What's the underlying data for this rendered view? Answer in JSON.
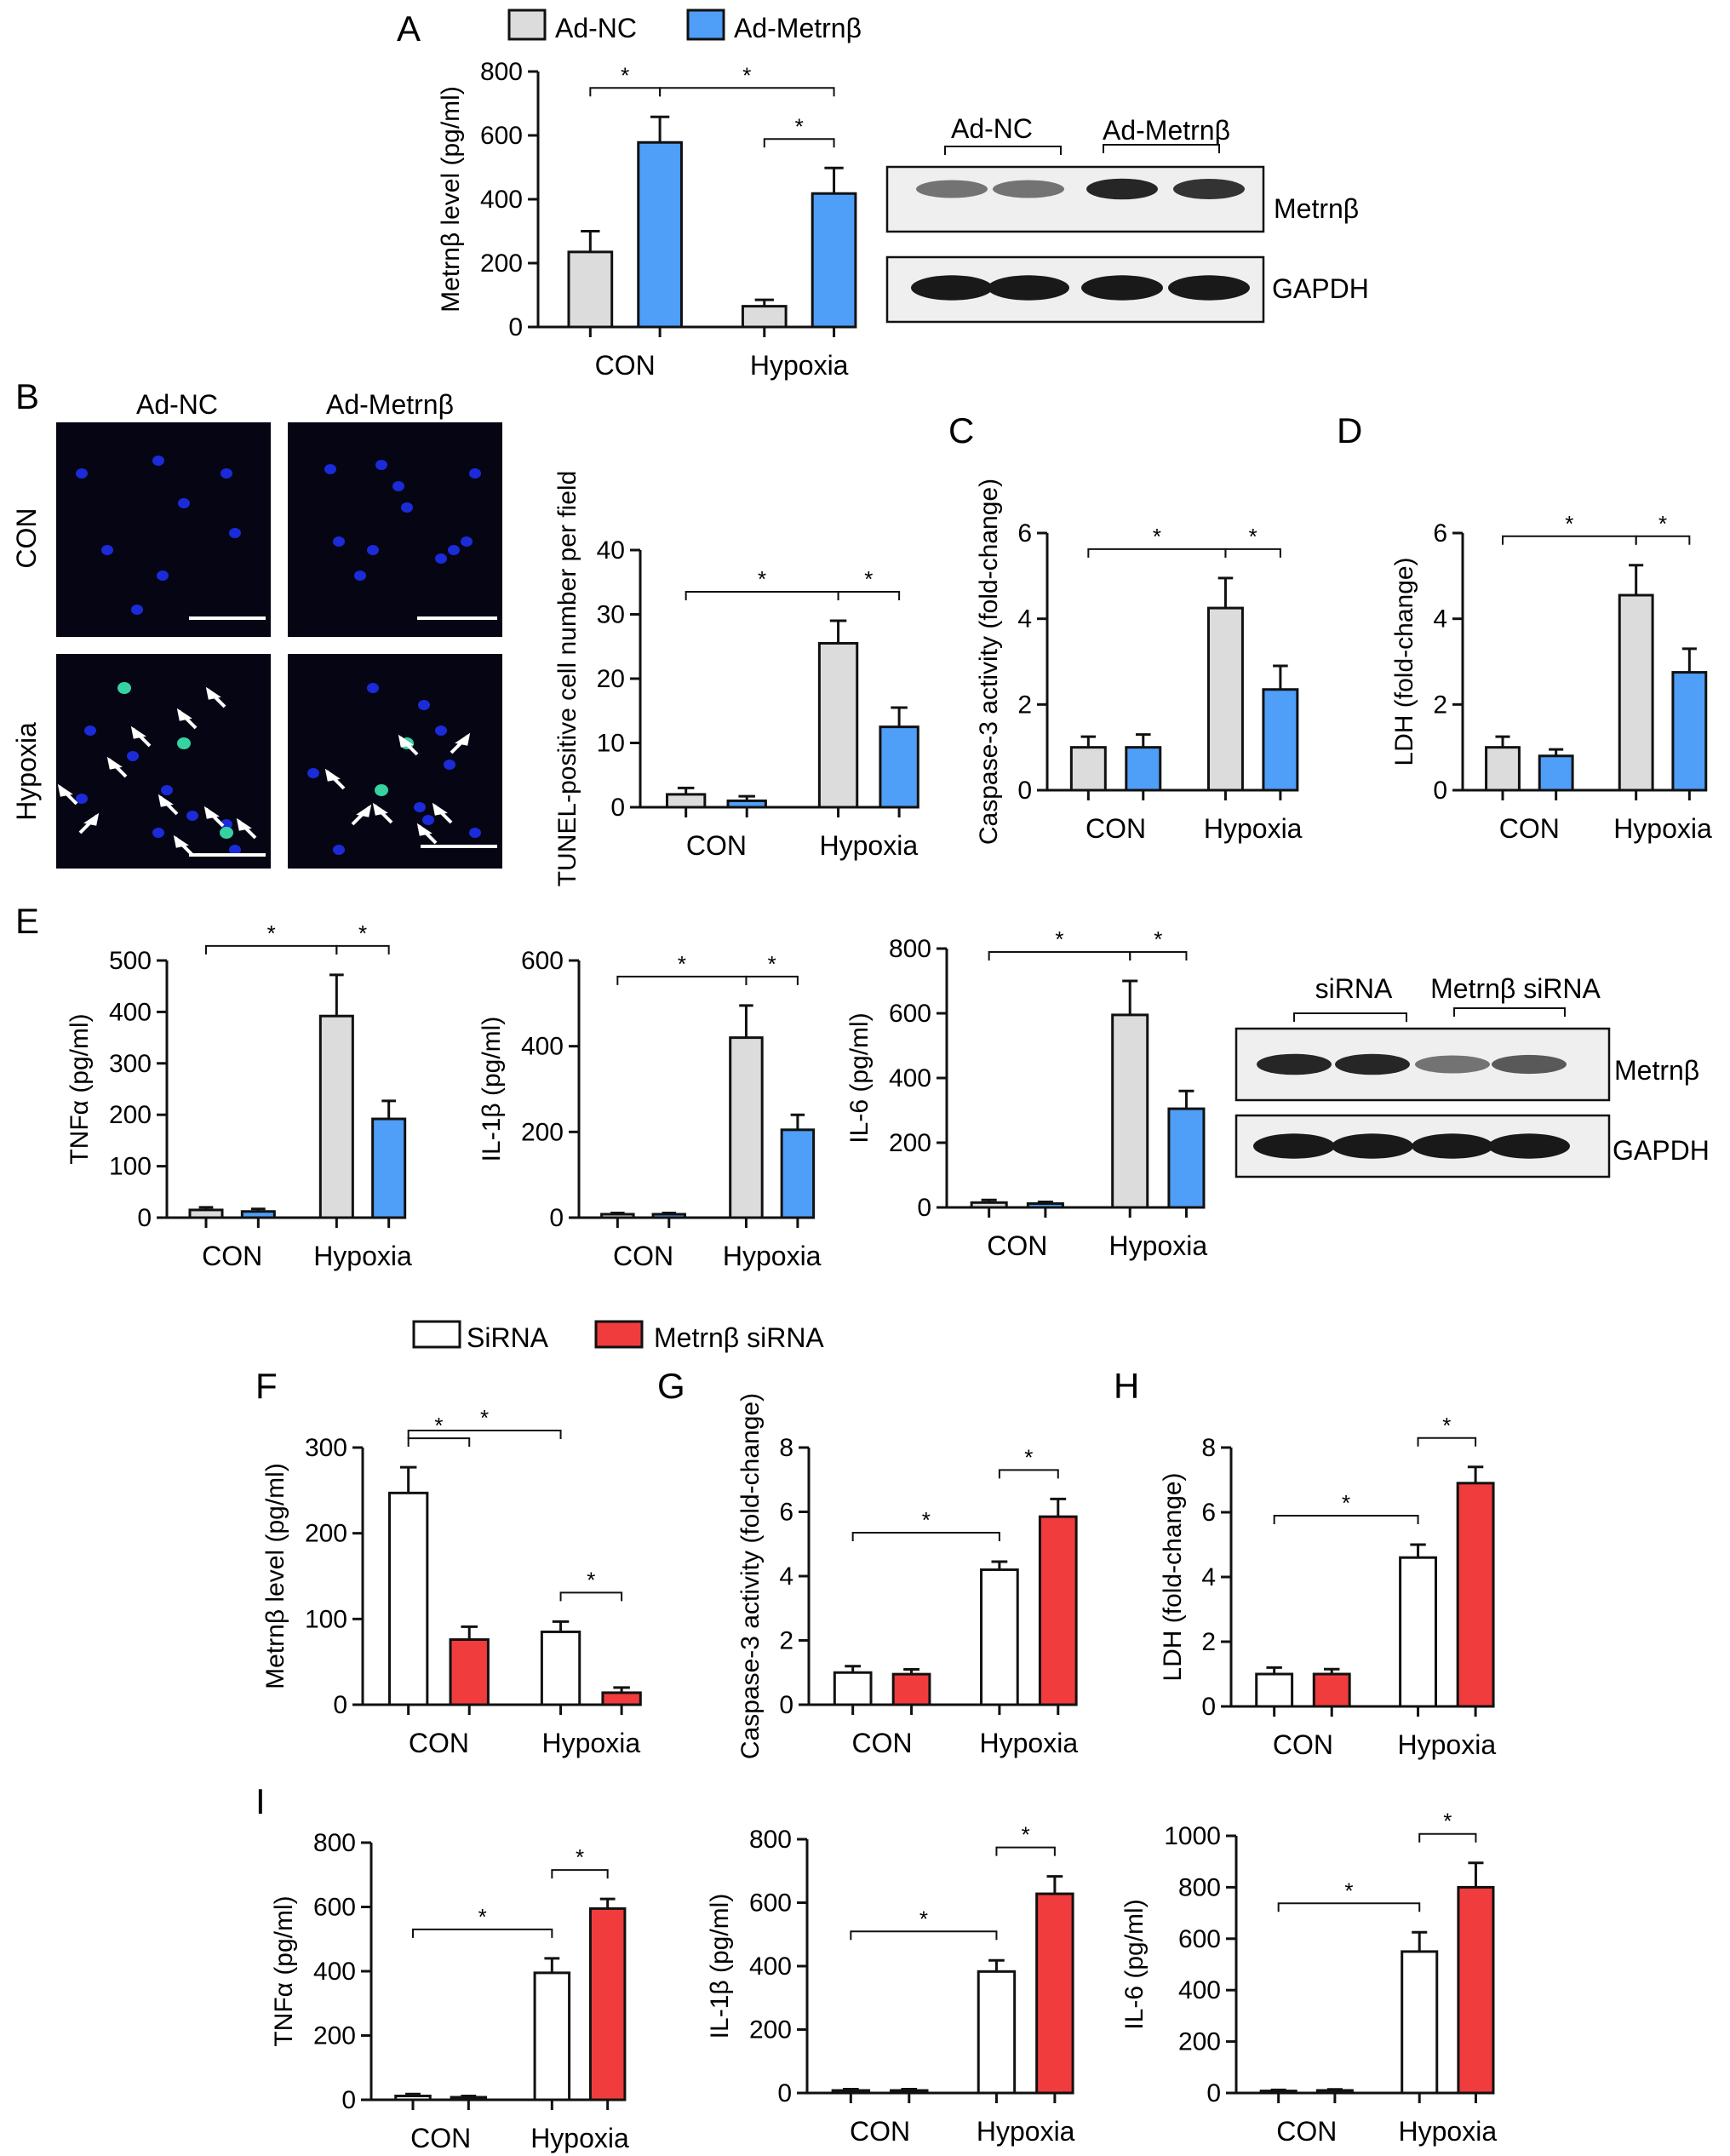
{
  "colors": {
    "ad_nc": "#dcdcdc",
    "ad_metrn": "#4f9ef8",
    "sirna": "#ffffff",
    "metrn_sirna": "#f03c3c",
    "stain_bg": "#050514",
    "nucleus": "#1b2bd8",
    "tunel": "#36d2a0"
  },
  "legends": {
    "top": [
      "Ad-NC",
      "Ad-Metrnβ"
    ],
    "bottom": [
      "SiRNA",
      "Metrnβ siRNA"
    ]
  },
  "chart_data": [
    {
      "id": "A",
      "letter": "A",
      "type": "bar",
      "ylabel": "Metrnβ level (pg/ml)",
      "ylim": [
        0,
        800
      ],
      "ticks": [
        0,
        200,
        400,
        600,
        800
      ],
      "categories": [
        "CON",
        "Hypoxia"
      ],
      "series": [
        {
          "name": "Ad-NC",
          "values": [
            235,
            65
          ],
          "errors": [
            65,
            20
          ]
        },
        {
          "name": "Ad-Metrnβ",
          "values": [
            578,
            418
          ],
          "errors": [
            80,
            80
          ]
        }
      ],
      "significance": [
        [
          0,
          1
        ],
        [
          1,
          3
        ],
        [
          2,
          3
        ]
      ]
    },
    {
      "id": "B",
      "letter": "",
      "type": "bar",
      "ylabel": "TUNEL-positive cell number per field",
      "ylim": [
        0,
        40
      ],
      "ticks": [
        0,
        10,
        20,
        30,
        40
      ],
      "categories": [
        "CON",
        "Hypoxia"
      ],
      "series": [
        {
          "name": "Ad-NC",
          "values": [
            2,
            25.5
          ],
          "errors": [
            1,
            3.5
          ]
        },
        {
          "name": "Ad-Metrnβ",
          "values": [
            1,
            12.5
          ],
          "errors": [
            0.7,
            3
          ]
        }
      ],
      "significance": [
        [
          0,
          2
        ],
        [
          2,
          3
        ]
      ]
    },
    {
      "id": "C",
      "letter": "C",
      "type": "bar",
      "ylabel": "Caspase-3 activity (fold-change)",
      "ylim": [
        0,
        6
      ],
      "ticks": [
        0,
        2,
        4,
        6
      ],
      "categories": [
        "CON",
        "Hypoxia"
      ],
      "series": [
        {
          "name": "Ad-NC",
          "values": [
            1,
            4.25
          ],
          "errors": [
            0.25,
            0.7
          ]
        },
        {
          "name": "Ad-Metrnβ",
          "values": [
            1,
            2.35
          ],
          "errors": [
            0.3,
            0.55
          ]
        }
      ],
      "significance": [
        [
          0,
          2
        ],
        [
          2,
          3
        ]
      ]
    },
    {
      "id": "D",
      "letter": "D",
      "type": "bar",
      "ylabel": "LDH (fold-change)",
      "ylim": [
        0,
        6
      ],
      "ticks": [
        0,
        2,
        4,
        6
      ],
      "categories": [
        "CON",
        "Hypoxia"
      ],
      "series": [
        {
          "name": "Ad-NC",
          "values": [
            1,
            4.55
          ],
          "errors": [
            0.25,
            0.7
          ]
        },
        {
          "name": "Ad-Metrnβ",
          "values": [
            0.8,
            2.75
          ],
          "errors": [
            0.15,
            0.55
          ]
        }
      ],
      "significance": [
        [
          0,
          2
        ],
        [
          2,
          3
        ]
      ]
    },
    {
      "id": "E1",
      "letter": "E",
      "type": "bar",
      "ylabel": "TNFα (pg/ml)",
      "ylim": [
        0,
        500
      ],
      "ticks": [
        0,
        100,
        200,
        300,
        400,
        500
      ],
      "categories": [
        "CON",
        "Hypoxia"
      ],
      "series": [
        {
          "name": "Ad-NC",
          "values": [
            15,
            392
          ],
          "errors": [
            5,
            80
          ]
        },
        {
          "name": "Ad-Metrnβ",
          "values": [
            12,
            192
          ],
          "errors": [
            5,
            35
          ]
        }
      ],
      "significance": [
        [
          0,
          2
        ],
        [
          2,
          3
        ]
      ]
    },
    {
      "id": "E2",
      "letter": "",
      "type": "bar",
      "ylabel": "IL-1β (pg/ml)",
      "ylim": [
        0,
        600
      ],
      "ticks": [
        0,
        200,
        400,
        600
      ],
      "categories": [
        "CON",
        "Hypoxia"
      ],
      "series": [
        {
          "name": "Ad-NC",
          "values": [
            8,
            420
          ],
          "errors": [
            3,
            75
          ]
        },
        {
          "name": "Ad-Metrnβ",
          "values": [
            8,
            205
          ],
          "errors": [
            3,
            35
          ]
        }
      ],
      "significance": [
        [
          0,
          2
        ],
        [
          2,
          3
        ]
      ]
    },
    {
      "id": "E3",
      "letter": "",
      "type": "bar",
      "ylabel": "IL-6 (pg/ml)",
      "ylim": [
        0,
        800
      ],
      "ticks": [
        0,
        200,
        400,
        600,
        800
      ],
      "categories": [
        "CON",
        "Hypoxia"
      ],
      "series": [
        {
          "name": "Ad-NC",
          "values": [
            15,
            595
          ],
          "errors": [
            8,
            105
          ]
        },
        {
          "name": "Ad-Metrnβ",
          "values": [
            12,
            305
          ],
          "errors": [
            5,
            55
          ]
        }
      ],
      "significance": [
        [
          0,
          2
        ],
        [
          2,
          3
        ]
      ]
    },
    {
      "id": "F",
      "letter": "F",
      "type": "bar",
      "ylabel": "Metrnβ level (pg/ml)",
      "ylim": [
        0,
        300
      ],
      "ticks": [
        0,
        100,
        200,
        300
      ],
      "categories": [
        "CON",
        "Hypoxia"
      ],
      "series": [
        {
          "name": "SiRNA",
          "values": [
            247,
            85
          ],
          "errors": [
            30,
            12
          ]
        },
        {
          "name": "Metrnβ siRNA",
          "values": [
            76,
            14
          ],
          "errors": [
            15,
            6
          ]
        }
      ],
      "significance": [
        [
          0,
          1
        ],
        [
          0,
          2
        ],
        [
          2,
          3
        ]
      ]
    },
    {
      "id": "G",
      "letter": "G",
      "type": "bar",
      "ylabel": "Caspase-3 activity (fold-change)",
      "ylim": [
        0,
        8
      ],
      "ticks": [
        0,
        2,
        4,
        6,
        8
      ],
      "categories": [
        "CON",
        "Hypoxia"
      ],
      "series": [
        {
          "name": "SiRNA",
          "values": [
            1,
            4.2
          ],
          "errors": [
            0.2,
            0.25
          ]
        },
        {
          "name": "Metrnβ siRNA",
          "values": [
            0.95,
            5.85
          ],
          "errors": [
            0.15,
            0.55
          ]
        }
      ],
      "significance": [
        [
          0,
          2
        ],
        [
          2,
          3
        ]
      ]
    },
    {
      "id": "H",
      "letter": "H",
      "type": "bar",
      "ylabel": "LDH (fold-change)",
      "ylim": [
        0,
        8
      ],
      "ticks": [
        0,
        2,
        4,
        6,
        8
      ],
      "categories": [
        "CON",
        "Hypoxia"
      ],
      "series": [
        {
          "name": "SiRNA",
          "values": [
            1,
            4.6
          ],
          "errors": [
            0.2,
            0.4
          ]
        },
        {
          "name": "Metrnβ siRNA",
          "values": [
            1,
            6.9
          ],
          "errors": [
            0.15,
            0.5
          ]
        }
      ],
      "significance": [
        [
          0,
          2
        ],
        [
          2,
          3
        ]
      ]
    },
    {
      "id": "I1",
      "letter": "I",
      "type": "bar",
      "ylabel": "TNFα (pg/ml)",
      "ylim": [
        0,
        800
      ],
      "ticks": [
        0,
        200,
        400,
        600,
        800
      ],
      "categories": [
        "CON",
        "Hypoxia"
      ],
      "series": [
        {
          "name": "SiRNA",
          "values": [
            12,
            395
          ],
          "errors": [
            6,
            45
          ]
        },
        {
          "name": "Metrnβ siRNA",
          "values": [
            8,
            595
          ],
          "errors": [
            4,
            30
          ]
        }
      ],
      "significance": [
        [
          0,
          2
        ],
        [
          2,
          3
        ]
      ]
    },
    {
      "id": "I2",
      "letter": "",
      "type": "bar",
      "ylabel": "IL-1β (pg/ml)",
      "ylim": [
        0,
        800
      ],
      "ticks": [
        0,
        200,
        400,
        600,
        800
      ],
      "categories": [
        "CON",
        "Hypoxia"
      ],
      "series": [
        {
          "name": "SiRNA",
          "values": [
            8,
            383
          ],
          "errors": [
            4,
            35
          ]
        },
        {
          "name": "Metrnβ siRNA",
          "values": [
            8,
            628
          ],
          "errors": [
            4,
            55
          ]
        }
      ],
      "significance": [
        [
          0,
          2
        ],
        [
          2,
          3
        ]
      ]
    },
    {
      "id": "I3",
      "letter": "",
      "type": "bar",
      "ylabel": "IL-6 (pg/ml)",
      "ylim": [
        0,
        1000
      ],
      "ticks": [
        0,
        200,
        400,
        600,
        800,
        1000
      ],
      "categories": [
        "CON",
        "Hypoxia"
      ],
      "series": [
        {
          "name": "SiRNA",
          "values": [
            8,
            550
          ],
          "errors": [
            4,
            75
          ]
        },
        {
          "name": "Metrnβ siRNA",
          "values": [
            10,
            800
          ],
          "errors": [
            4,
            95
          ]
        }
      ],
      "significance": [
        [
          0,
          2
        ],
        [
          2,
          3
        ]
      ]
    }
  ],
  "blots": [
    {
      "id": "blot1",
      "groups": [
        "Ad-NC",
        "Ad-Metrnβ"
      ],
      "bands": [
        {
          "label": "Metrnβ",
          "intensity": [
            0.55,
            0.55,
            0.85,
            0.8
          ]
        },
        {
          "label": "GAPDH",
          "intensity": [
            0.9,
            0.9,
            0.9,
            0.9
          ]
        }
      ]
    },
    {
      "id": "blot2",
      "groups": [
        "siRNA",
        "Metrnβ siRNA"
      ],
      "bands": [
        {
          "label": "Metrnβ",
          "intensity": [
            0.85,
            0.85,
            0.55,
            0.65
          ]
        },
        {
          "label": "GAPDH",
          "intensity": [
            0.9,
            0.9,
            0.9,
            0.9
          ]
        }
      ]
    }
  ],
  "micrographs": {
    "letter": "B",
    "columns": [
      "Ad-NC",
      "Ad-Metrnβ"
    ],
    "rows": [
      "CON",
      "Hypoxia"
    ]
  },
  "panel_letters": {
    "A": "A",
    "B": "B",
    "E": "E",
    "F": "F",
    "G": "G",
    "H": "H",
    "I": "I"
  },
  "star": "*"
}
